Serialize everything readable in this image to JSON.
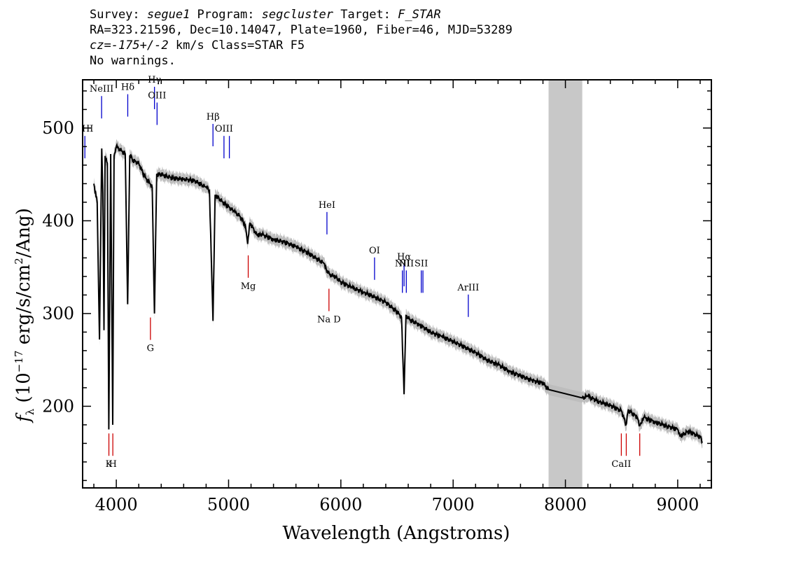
{
  "header": {
    "line1": {
      "survey_label": "Survey: ",
      "survey": "segue1",
      "program_label": " Program: ",
      "program": "segcluster",
      "target_label": " Target: ",
      "target": "F_STAR"
    },
    "line2": "RA=323.21596, Dec=10.14047, Plate=1960, Fiber=46, MJD=53289",
    "line3": {
      "cz": "cz=-175+/-2",
      "rest": " km/s Class=STAR F5"
    },
    "line4": "No warnings."
  },
  "chart_data": {
    "type": "line",
    "xlabel": "Wavelength (Angstroms)",
    "ylabel": "f_λ (10^-17 erg/s/cm^2/Ang)",
    "ylabel_parts": {
      "f": "f",
      "sub": "λ",
      "pre": " (10",
      "exp1": "−17",
      "mid": " erg/s/cm",
      "exp2": "2",
      "post": "/Ang)"
    },
    "xlim": [
      3700,
      9300
    ],
    "ylim": [
      112,
      552
    ],
    "x_ticks": [
      4000,
      5000,
      6000,
      7000,
      8000,
      9000
    ],
    "y_ticks": [
      200,
      300,
      400,
      500
    ],
    "masked_region": [
      7850,
      8150
    ],
    "colors": {
      "spectrum": "#000000",
      "error_band": "#bdbdbd",
      "emission": "#0000cc",
      "absorption": "#cc0000",
      "mask": "#c8c8c8"
    },
    "spectrum": {
      "x": [
        3800,
        3830,
        3850,
        3870,
        3880,
        3890,
        3900,
        3920,
        3933,
        3950,
        3968,
        3980,
        4000,
        4050,
        4080,
        4101,
        4120,
        4150,
        4200,
        4250,
        4300,
        4320,
        4340,
        4360,
        4400,
        4500,
        4600,
        4700,
        4800,
        4830,
        4861,
        4880,
        4950,
        5050,
        5100,
        5150,
        5170,
        5190,
        5250,
        5300,
        5400,
        5500,
        5600,
        5700,
        5800,
        5850,
        5875,
        5890,
        5900,
        5950,
        6000,
        6100,
        6200,
        6300,
        6400,
        6500,
        6540,
        6563,
        6580,
        6620,
        6700,
        6800,
        6900,
        7000,
        7100,
        7200,
        7300,
        7400,
        7500,
        7600,
        7700,
        7800,
        7850,
        8150,
        8200,
        8300,
        8400,
        8500,
        8540,
        8560,
        8600,
        8640,
        8662,
        8700,
        8800,
        8900,
        9000,
        9020,
        9100,
        9200,
        9220
      ],
      "y": [
        440,
        420,
        272,
        478,
        430,
        282,
        470,
        462,
        175,
        472,
        180,
        470,
        480,
        475,
        472,
        310,
        470,
        465,
        462,
        448,
        440,
        436,
        300,
        450,
        450,
        446,
        445,
        443,
        436,
        432,
        292,
        428,
        420,
        410,
        405,
        395,
        375,
        398,
        385,
        385,
        380,
        377,
        372,
        366,
        358,
        354,
        345,
        346,
        342,
        340,
        334,
        328,
        323,
        318,
        312,
        302,
        296,
        213,
        298,
        293,
        288,
        280,
        275,
        270,
        264,
        258,
        250,
        245,
        238,
        233,
        228,
        225,
        218,
        209,
        211,
        205,
        201,
        195,
        180,
        196,
        192,
        188,
        179,
        188,
        183,
        179,
        175,
        168,
        173,
        167,
        162
      ]
    },
    "spectral_lines": [
      {
        "label": "ΗΙ",
        "wave": 3720,
        "kind": "emission",
        "label_level": 496
      },
      {
        "label": "NeIII",
        "wave": 3869,
        "kind": "emission",
        "label_level": 539
      },
      {
        "label": "Ηδ",
        "wave": 4102,
        "kind": "emission",
        "label_level": 541
      },
      {
        "label": "Ηγ",
        "wave": 4340,
        "kind": "emission",
        "label_level": 549
      },
      {
        "label": "OIII",
        "wave": 4363,
        "kind": "emission",
        "label_level": 532
      },
      {
        "label": "Ηβ",
        "wave": 4861,
        "kind": "emission",
        "label_level": 509
      },
      {
        "label": "OIII",
        "wave": 4959,
        "kind": "emission",
        "label_level": 496
      },
      {
        "label": "",
        "wave": 5007,
        "kind": "emission",
        "label_level": 496
      },
      {
        "label": "HeI",
        "wave": 5876,
        "kind": "emission",
        "label_level": 414
      },
      {
        "label": "OI",
        "wave": 6300,
        "kind": "emission",
        "label_level": 365
      },
      {
        "label": "NII",
        "wave": 6548,
        "kind": "emission",
        "label_level": 351
      },
      {
        "label": "Ηα",
        "wave": 6563,
        "kind": "emission",
        "label_level": 358
      },
      {
        "label": "NII",
        "wave": 6583,
        "kind": "emission",
        "label_level": 351
      },
      {
        "label": "SII",
        "wave": 6716,
        "kind": "emission",
        "label_level": 351
      },
      {
        "label": "",
        "wave": 6731,
        "kind": "emission",
        "label_level": 351
      },
      {
        "label": "ArIII",
        "wave": 7135,
        "kind": "emission",
        "label_level": 325
      },
      {
        "label": "K",
        "wave": 3934,
        "kind": "absorption",
        "label_level": 136
      },
      {
        "label": "H",
        "wave": 3969,
        "kind": "absorption",
        "label_level": 136
      },
      {
        "label": "G",
        "wave": 4304,
        "kind": "absorption",
        "label_level": 261
      },
      {
        "label": "Mg",
        "wave": 5175,
        "kind": "absorption",
        "label_level": 328
      },
      {
        "label": "Na D",
        "wave": 5894,
        "kind": "absorption",
        "label_level": 292
      },
      {
        "label": "CaII",
        "wave": 8498,
        "kind": "absorption",
        "label_level": 136
      },
      {
        "label": "",
        "wave": 8542,
        "kind": "absorption",
        "label_level": 136
      },
      {
        "label": "",
        "wave": 8662,
        "kind": "absorption",
        "label_level": 136
      }
    ]
  }
}
